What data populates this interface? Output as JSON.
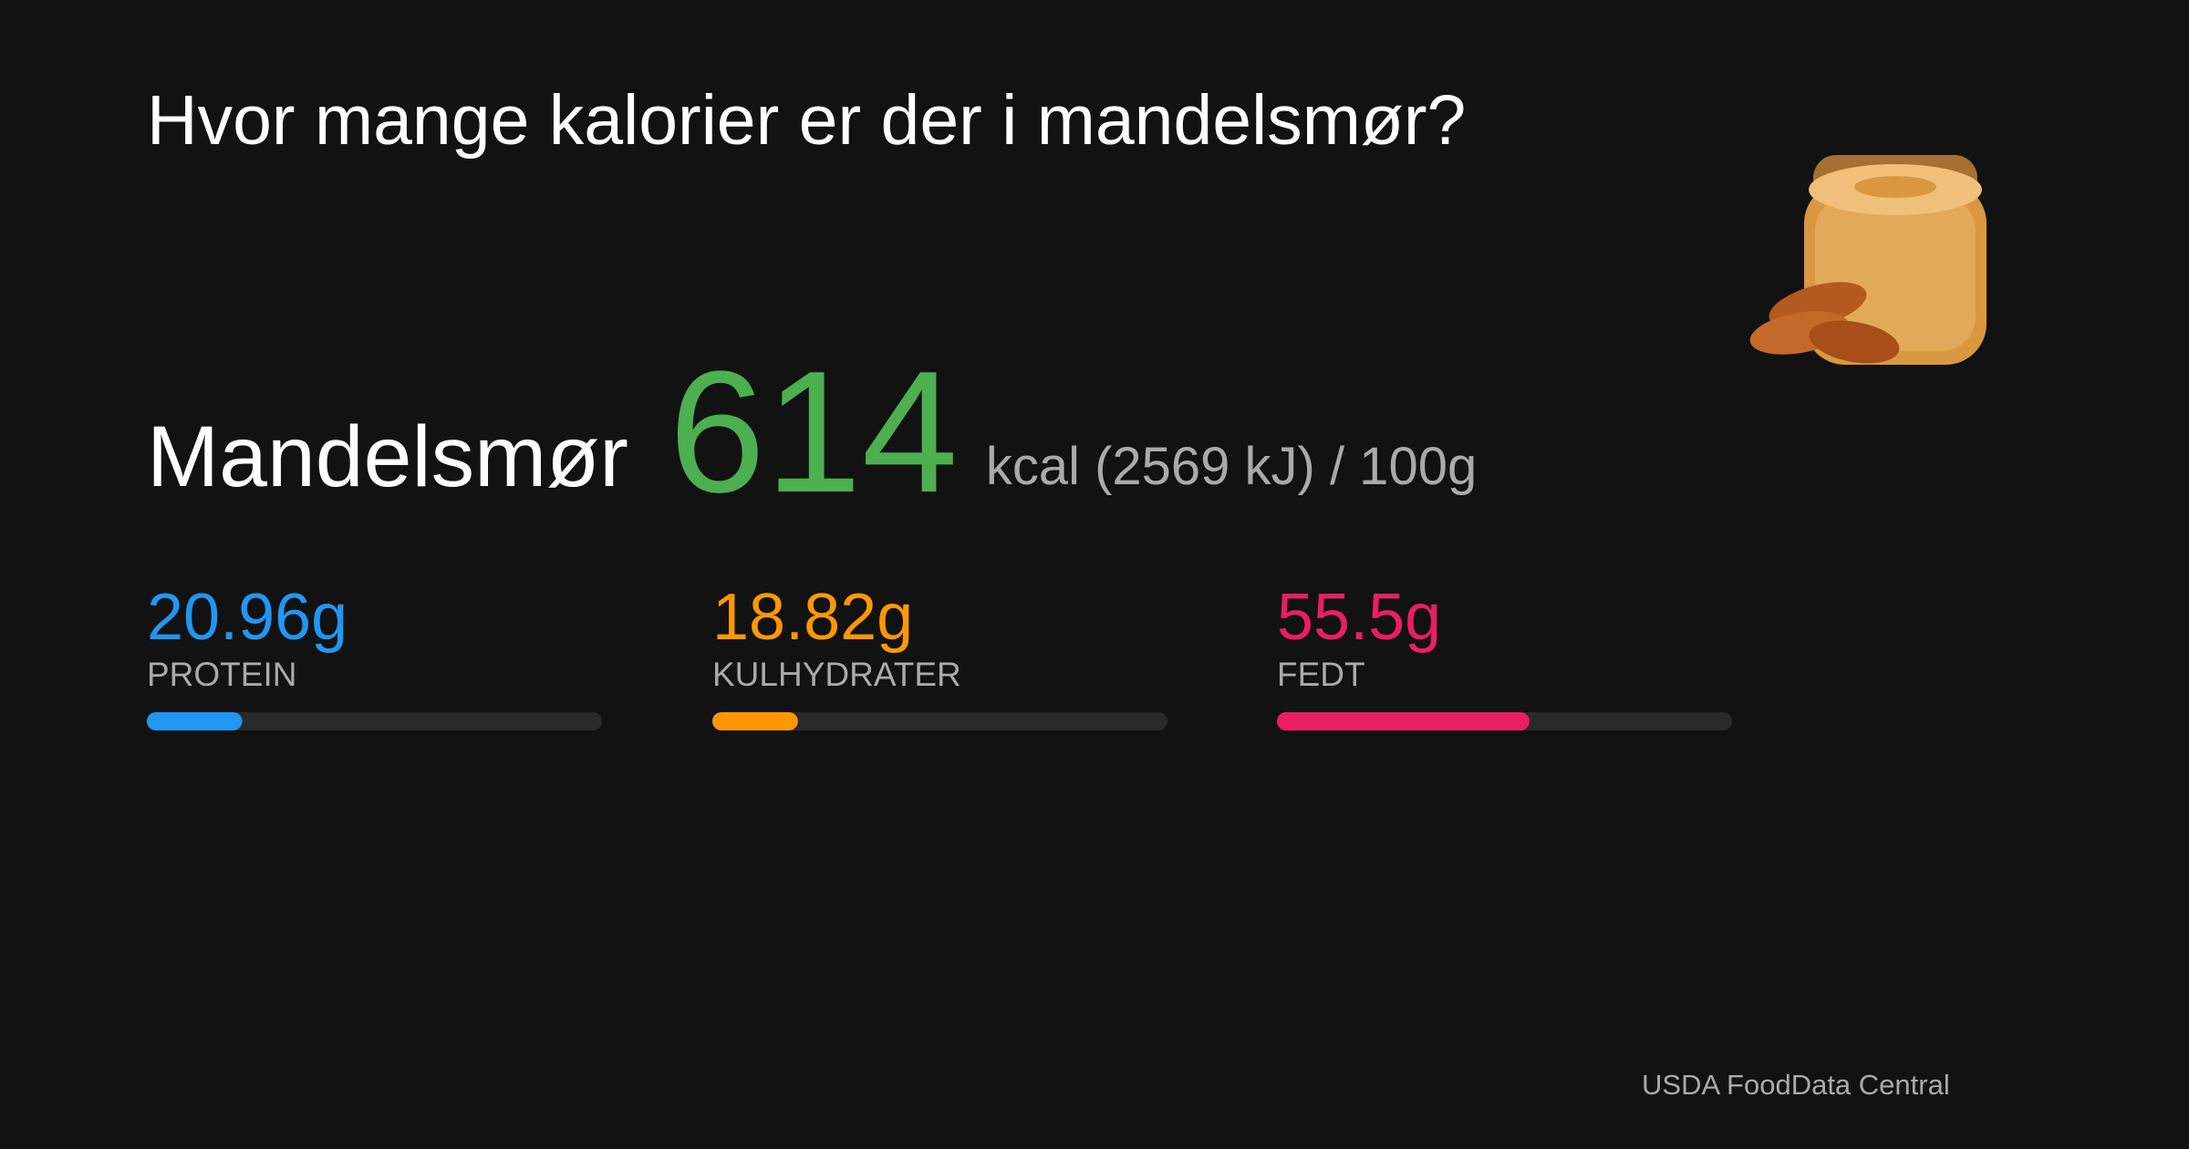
{
  "title": "Hvor mange kalorier er der i mandelsmør?",
  "food": "Mandelsmør",
  "calories": {
    "value": "614",
    "unit": "kcal (2569 kJ) / 100g"
  },
  "macros": {
    "xlim": [
      0,
      100
    ],
    "items": [
      {
        "name": "PROTEIN",
        "value": 20.96,
        "value_label": "20.96g",
        "color": "#2196f3"
      },
      {
        "name": "KULHYDRATER",
        "value": 18.82,
        "value_label": "18.82g",
        "color": "#ff9800"
      },
      {
        "name": "FEDT",
        "value": 55.5,
        "value_label": "55.5g",
        "color": "#e91e63"
      }
    ]
  },
  "source": "USDA FoodData Central"
}
